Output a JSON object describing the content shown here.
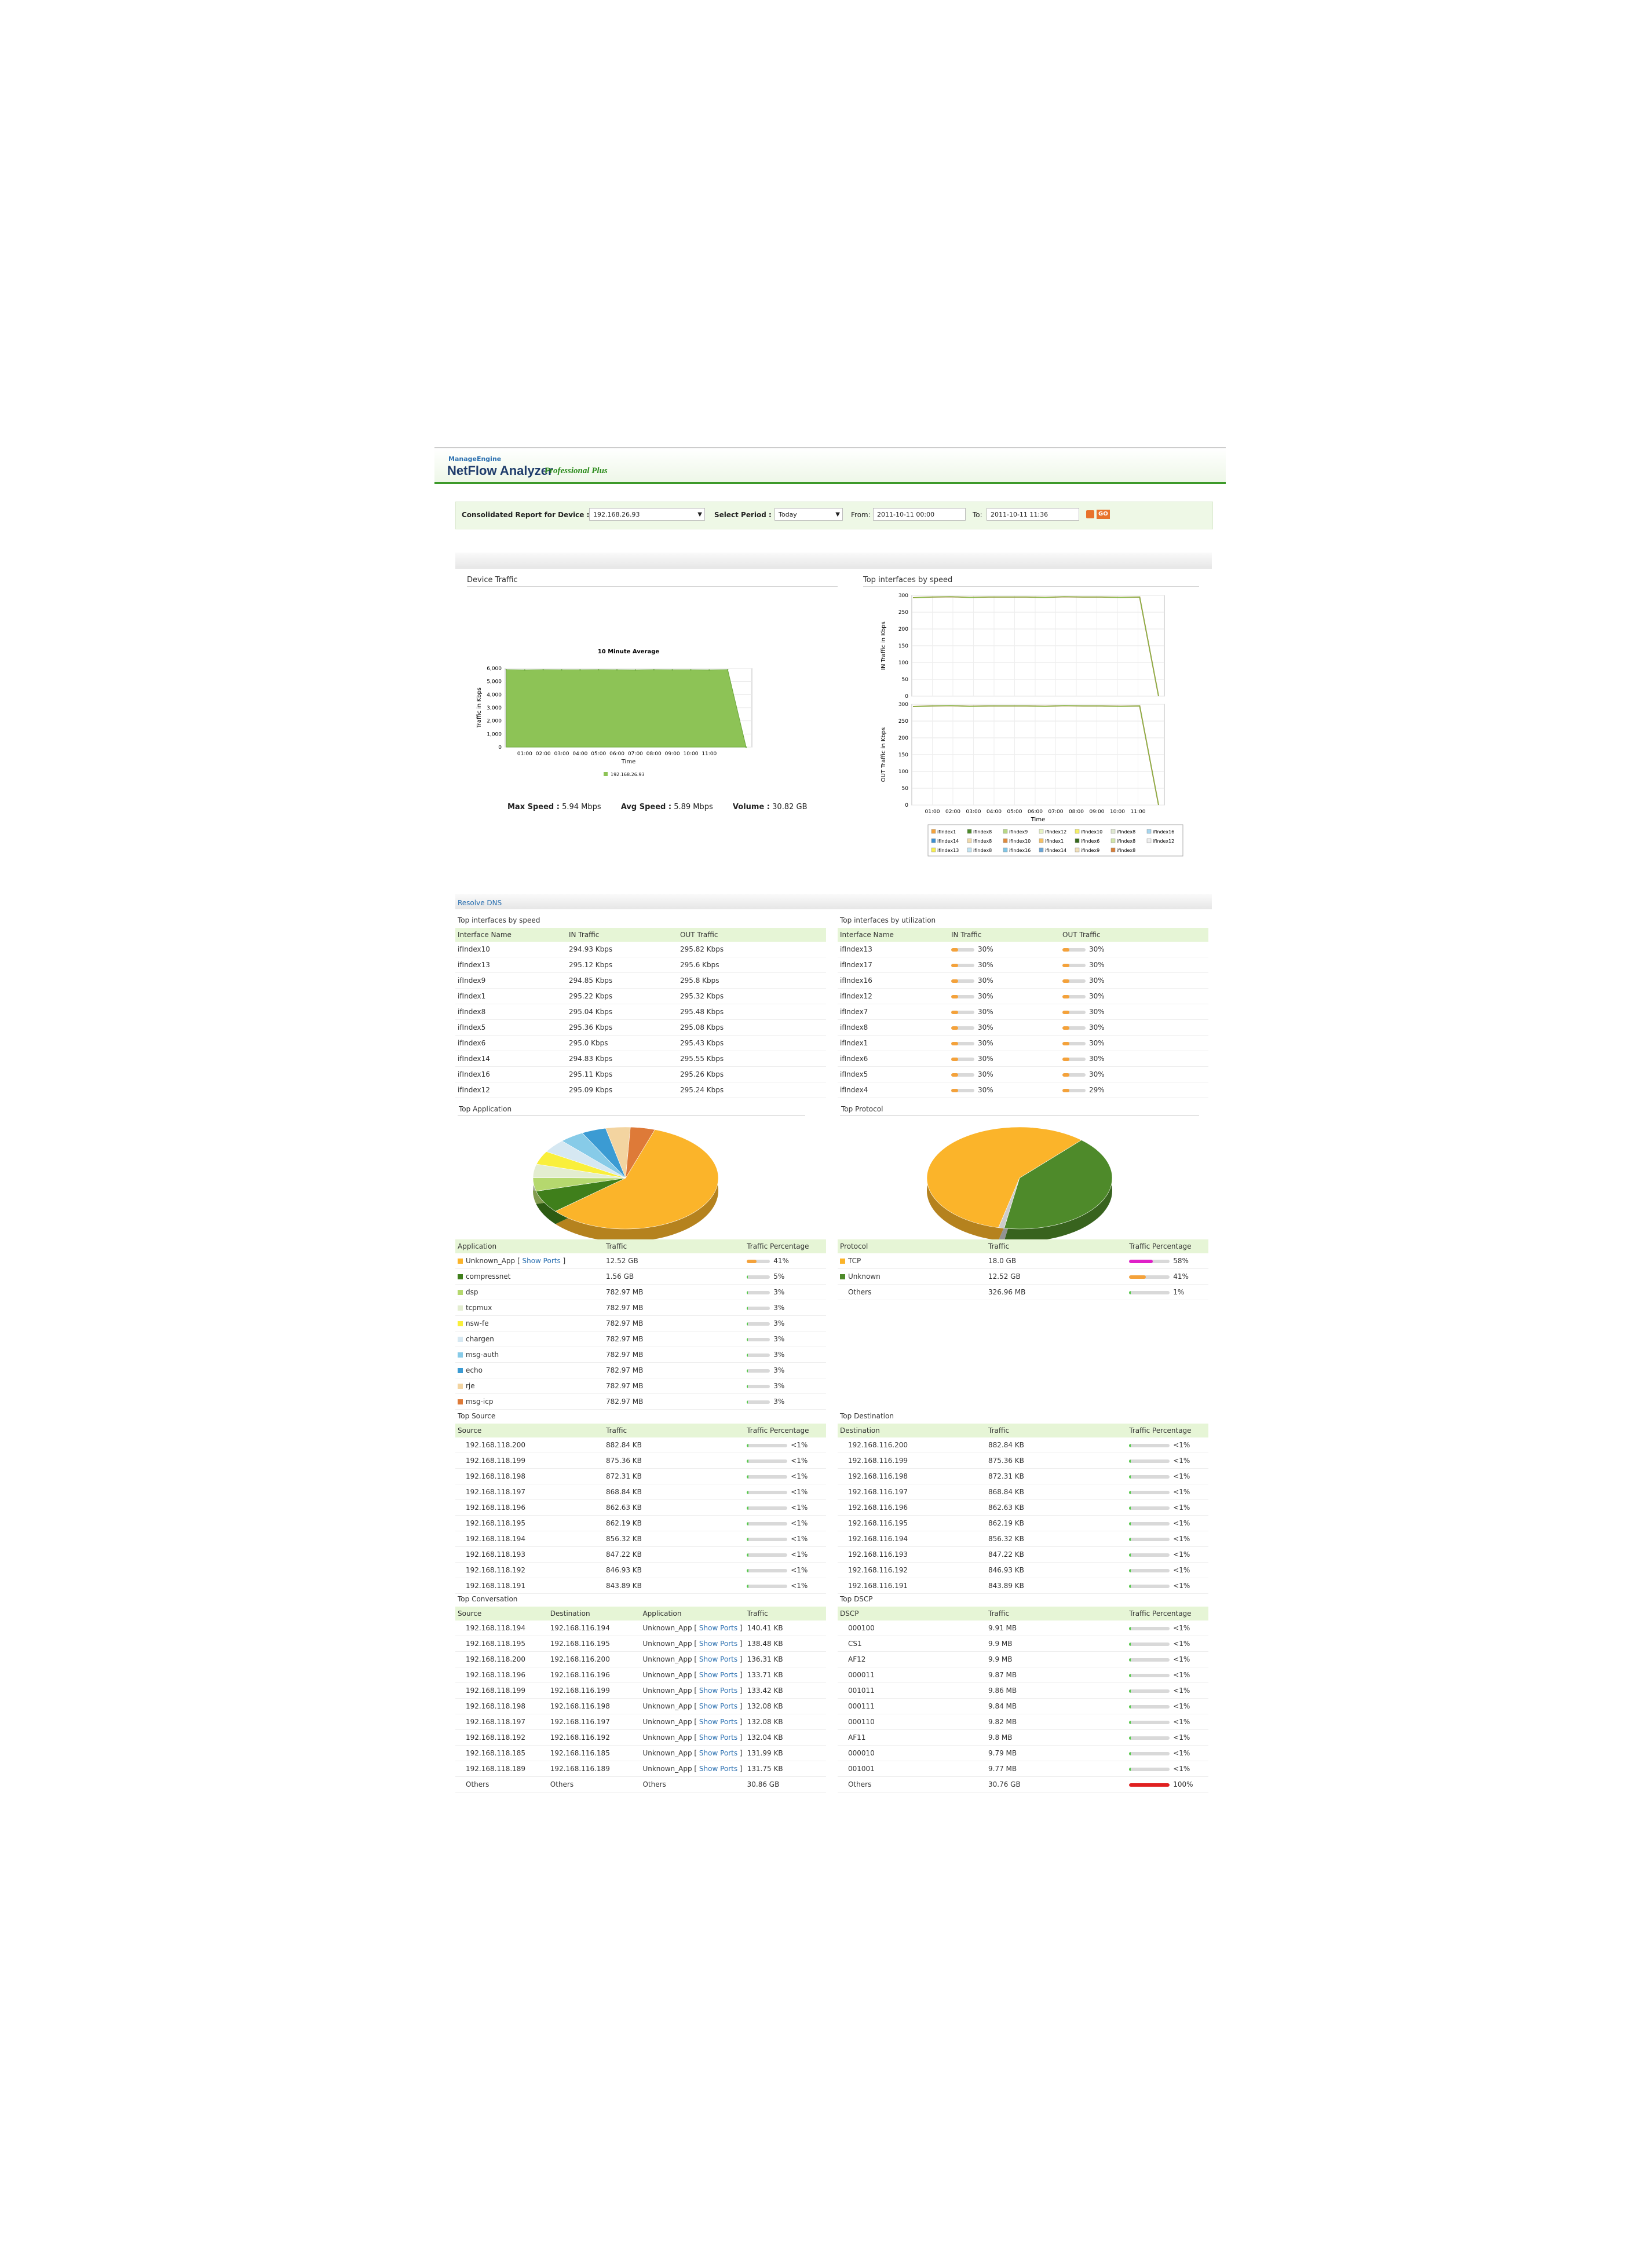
{
  "brand": {
    "vendor": "ManageEngine",
    "product": "NetFlow Analyzer",
    "edition": "Professional Plus"
  },
  "filter": {
    "device_label": "Consolidated Report for Device :",
    "device_value": "192.168.26.93",
    "period_label": "Select Period :",
    "period_value": "Today",
    "from_label": "From:",
    "from_value": "2011-10-11 00:00",
    "to_label": "To:",
    "to_value": "2011-10-11 11:36",
    "go_label": "GO"
  },
  "device_traffic": {
    "section_title": "Device Traffic",
    "chart_title": "10 Minute Average",
    "y_ticks": [
      "6,000",
      "5,000",
      "4,000",
      "3,000",
      "2,000",
      "1,000",
      "0"
    ],
    "x_ticks": [
      "01:00",
      "02:00",
      "03:00",
      "04:00",
      "05:00",
      "06:00",
      "07:00",
      "08:00",
      "09:00",
      "10:00",
      "11:00"
    ],
    "ylabel": "Traffic in Kbps",
    "xlabel": "Time",
    "legend": "192.168.26.93",
    "max_label": "Max Speed :",
    "max_value": "5.94 Mbps",
    "avg_label": "Avg Speed :",
    "avg_value": "5.89 Mbps",
    "vol_label": "Volume :",
    "vol_value": "30.82 GB"
  },
  "speed_charts": {
    "section_title": "Top interfaces by speed",
    "y_ticks": [
      "300",
      "250",
      "200",
      "150",
      "100",
      "50",
      "0"
    ],
    "in_ylabel": "IN Traffic in Kbps",
    "out_ylabel": "OUT Traffic in Kbps",
    "x_ticks": [
      "01:00",
      "02:00",
      "03:00",
      "04:00",
      "05:00",
      "06:00",
      "07:00",
      "08:00",
      "09:00",
      "10:00",
      "11:00"
    ],
    "xlabel": "Time",
    "legend": [
      {
        "name": "ifIndex1",
        "color": "#f4a23b"
      },
      {
        "name": "ifIndex8",
        "color": "#4c8a2a"
      },
      {
        "name": "ifIndex9",
        "color": "#b7d884"
      },
      {
        "name": "ifIndex12",
        "color": "#e7f2c4"
      },
      {
        "name": "ifIndex10",
        "color": "#f6f067"
      },
      {
        "name": "ifIndex8",
        "color": "#dfe8d0"
      },
      {
        "name": "ifIndex16",
        "color": "#a6d6ef"
      },
      {
        "name": "ifIndex14",
        "color": "#3d8fd1"
      },
      {
        "name": "ifIndex8",
        "color": "#f0d9a8"
      },
      {
        "name": "ifIndex10",
        "color": "#e08a3c"
      },
      {
        "name": "ifIndex1",
        "color": "#f5c065"
      },
      {
        "name": "ifIndex6",
        "color": "#386b1f"
      },
      {
        "name": "ifIndex8",
        "color": "#d1e5a8"
      },
      {
        "name": "ifIndex12",
        "color": "#eeeeee"
      },
      {
        "name": "ifIndex13",
        "color": "#f8ef4e"
      },
      {
        "name": "ifIndex8",
        "color": "#bfe3f2"
      },
      {
        "name": "ifIndex16",
        "color": "#80c7e8"
      },
      {
        "name": "ifIndex14",
        "color": "#6aa6d8"
      },
      {
        "name": "ifIndex9",
        "color": "#f2e0b8"
      },
      {
        "name": "ifIndex8",
        "color": "#d9803a"
      }
    ]
  },
  "chart_data": [
    {
      "type": "area",
      "title": "10 Minute Average",
      "xlabel": "Time",
      "ylabel": "Traffic in Kbps",
      "x": [
        "00:10",
        "01:00",
        "02:00",
        "03:00",
        "04:00",
        "05:00",
        "06:00",
        "07:00",
        "08:00",
        "09:00",
        "10:00",
        "11:00",
        "11:20",
        "11:30"
      ],
      "series": [
        {
          "name": "192.168.26.93",
          "values": [
            5900,
            5880,
            5900,
            5890,
            5890,
            5900,
            5890,
            5880,
            5900,
            5890,
            5890,
            5880,
            5900,
            0
          ]
        }
      ],
      "ylim": [
        0,
        6000
      ],
      "grid": true,
      "legend_position": "bottom"
    },
    {
      "type": "line",
      "title": "",
      "xlabel": "Time",
      "ylabel": "IN Traffic in Kbps",
      "x": [
        "00:10",
        "01:00",
        "02:00",
        "03:00",
        "04:00",
        "05:00",
        "06:00",
        "07:00",
        "08:00",
        "09:00",
        "10:00",
        "11:00",
        "11:20",
        "11:30"
      ],
      "series": [
        {
          "name": "ifIndex10",
          "values": [
            293,
            295,
            296,
            294,
            295,
            295,
            295,
            294,
            296,
            295,
            295,
            294,
            295,
            0
          ]
        }
      ],
      "ylim": [
        0,
        300
      ],
      "grid": true,
      "legend_position": "bottom"
    },
    {
      "type": "line",
      "title": "",
      "xlabel": "Time",
      "ylabel": "OUT Traffic in Kbps",
      "x": [
        "00:10",
        "01:00",
        "02:00",
        "03:00",
        "04:00",
        "05:00",
        "06:00",
        "07:00",
        "08:00",
        "09:00",
        "10:00",
        "11:00",
        "11:20",
        "11:30"
      ],
      "series": [
        {
          "name": "ifIndex10",
          "values": [
            293,
            295,
            296,
            294,
            295,
            295,
            295,
            294,
            296,
            295,
            295,
            294,
            295,
            0
          ]
        }
      ],
      "ylim": [
        0,
        300
      ],
      "grid": true,
      "legend_position": "bottom"
    },
    {
      "type": "pie",
      "title": "Top Application",
      "categories": [
        "Unknown_App",
        "compressnet",
        "dsp",
        "tcpmux",
        "nsw-fe",
        "chargen",
        "msg-auth",
        "echo",
        "rje",
        "msg-icp"
      ],
      "values": [
        41,
        5,
        3,
        3,
        3,
        3,
        3,
        3,
        3,
        3
      ],
      "colors": [
        "#fbb42a",
        "#3f7f1b",
        "#b5d86e",
        "#e3edd0",
        "#f9ef3b",
        "#d6e8f2",
        "#87cbe8",
        "#3b9bd3",
        "#f3d4a0",
        "#de7a38"
      ]
    },
    {
      "type": "pie",
      "title": "Top Protocol",
      "categories": [
        "TCP",
        "Unknown",
        "Others"
      ],
      "values": [
        58,
        41,
        1
      ],
      "colors": [
        "#fbb42a",
        "#4e8a2a",
        "#cccccc"
      ]
    }
  ],
  "resolve_dns": "Resolve DNS",
  "speed_table": {
    "title": "Top interfaces by speed",
    "headers": [
      "Interface Name",
      "IN Traffic",
      "OUT Traffic"
    ],
    "rows": [
      [
        "ifIndex10",
        "294.93 Kbps",
        "295.82 Kbps"
      ],
      [
        "ifIndex13",
        "295.12 Kbps",
        "295.6 Kbps"
      ],
      [
        "ifIndex9",
        "294.85 Kbps",
        "295.8 Kbps"
      ],
      [
        "ifIndex1",
        "295.22 Kbps",
        "295.32 Kbps"
      ],
      [
        "ifIndex8",
        "295.04 Kbps",
        "295.48 Kbps"
      ],
      [
        "ifIndex5",
        "295.36 Kbps",
        "295.08 Kbps"
      ],
      [
        "ifIndex6",
        "295.0 Kbps",
        "295.43 Kbps"
      ],
      [
        "ifIndex14",
        "294.83 Kbps",
        "295.55 Kbps"
      ],
      [
        "ifIndex16",
        "295.11 Kbps",
        "295.26 Kbps"
      ],
      [
        "ifIndex12",
        "295.09 Kbps",
        "295.24 Kbps"
      ]
    ]
  },
  "util_table": {
    "title": "Top interfaces by utilization",
    "headers": [
      "Interface Name",
      "IN Traffic",
      "OUT Traffic"
    ],
    "rows": [
      {
        "name": "ifIndex13",
        "in": "30%",
        "in_level": 30,
        "out": "30%",
        "out_level": 30
      },
      {
        "name": "ifIndex17",
        "in": "30%",
        "in_level": 30,
        "out": "30%",
        "out_level": 30
      },
      {
        "name": "ifIndex16",
        "in": "30%",
        "in_level": 30,
        "out": "30%",
        "out_level": 30
      },
      {
        "name": "ifIndex12",
        "in": "30%",
        "in_level": 30,
        "out": "30%",
        "out_level": 30
      },
      {
        "name": "ifIndex7",
        "in": "30%",
        "in_level": 30,
        "out": "30%",
        "out_level": 30
      },
      {
        "name": "ifIndex8",
        "in": "30%",
        "in_level": 30,
        "out": "30%",
        "out_level": 30
      },
      {
        "name": "ifIndex1",
        "in": "30%",
        "in_level": 30,
        "out": "30%",
        "out_level": 30
      },
      {
        "name": "ifIndex6",
        "in": "30%",
        "in_level": 30,
        "out": "30%",
        "out_level": 30
      },
      {
        "name": "ifIndex5",
        "in": "30%",
        "in_level": 30,
        "out": "30%",
        "out_level": 30
      },
      {
        "name": "ifIndex4",
        "in": "30%",
        "in_level": 30,
        "out": "29%",
        "out_level": 29
      }
    ]
  },
  "app_section_title": "Top Application",
  "protocol_section_title": "Top Protocol",
  "app_table": {
    "headers": [
      "Application",
      "Traffic",
      "Traffic Percentage"
    ],
    "show_ports": "Show Ports",
    "rows": [
      {
        "name": "Unknown_App",
        "color": "#fbb42a",
        "traffic": "12.52 GB",
        "pct": "41%",
        "level": 41,
        "bar": "#f4a23b",
        "ports": true
      },
      {
        "name": "compressnet",
        "color": "#3f7f1b",
        "traffic": "1.56 GB",
        "pct": "5%",
        "level": 5,
        "bar": "#55c94a"
      },
      {
        "name": "dsp",
        "color": "#b5d86e",
        "traffic": "782.97 MB",
        "pct": "3%",
        "level": 3,
        "bar": "#55c94a"
      },
      {
        "name": "tcpmux",
        "color": "#e3edd0",
        "traffic": "782.97 MB",
        "pct": "3%",
        "level": 3,
        "bar": "#55c94a"
      },
      {
        "name": "nsw-fe",
        "color": "#f9ef3b",
        "traffic": "782.97 MB",
        "pct": "3%",
        "level": 3,
        "bar": "#55c94a"
      },
      {
        "name": "chargen",
        "color": "#d6e8f2",
        "traffic": "782.97 MB",
        "pct": "3%",
        "level": 3,
        "bar": "#55c94a"
      },
      {
        "name": "msg-auth",
        "color": "#87cbe8",
        "traffic": "782.97 MB",
        "pct": "3%",
        "level": 3,
        "bar": "#55c94a"
      },
      {
        "name": "echo",
        "color": "#3b9bd3",
        "traffic": "782.97 MB",
        "pct": "3%",
        "level": 3,
        "bar": "#55c94a"
      },
      {
        "name": "rje",
        "color": "#f3d4a0",
        "traffic": "782.97 MB",
        "pct": "3%",
        "level": 3,
        "bar": "#55c94a"
      },
      {
        "name": "msg-icp",
        "color": "#de7a38",
        "traffic": "782.97 MB",
        "pct": "3%",
        "level": 3,
        "bar": "#55c94a"
      }
    ]
  },
  "proto_table": {
    "headers": [
      "Protocol",
      "Traffic",
      "Traffic Percentage"
    ],
    "rows": [
      {
        "name": "TCP",
        "color": "#fbb42a",
        "traffic": "18.0 GB",
        "pct": "58%",
        "level": 58,
        "bar": "#e020c8"
      },
      {
        "name": "Unknown",
        "color": "#4e8a2a",
        "traffic": "12.52 GB",
        "pct": "41%",
        "level": 41,
        "bar": "#f4a23b"
      },
      {
        "name": "Others",
        "color": "",
        "traffic": "326.96 MB",
        "pct": "1%",
        "level": 1,
        "bar": "#55c94a"
      }
    ]
  },
  "source_table": {
    "title": "Top Source",
    "headers": [
      "Source",
      "Traffic",
      "Traffic Percentage"
    ],
    "rows": [
      [
        "192.168.118.200",
        "882.84 KB",
        "<1%"
      ],
      [
        "192.168.118.199",
        "875.36 KB",
        "<1%"
      ],
      [
        "192.168.118.198",
        "872.31 KB",
        "<1%"
      ],
      [
        "192.168.118.197",
        "868.84 KB",
        "<1%"
      ],
      [
        "192.168.118.196",
        "862.63 KB",
        "<1%"
      ],
      [
        "192.168.118.195",
        "862.19 KB",
        "<1%"
      ],
      [
        "192.168.118.194",
        "856.32 KB",
        "<1%"
      ],
      [
        "192.168.118.193",
        "847.22 KB",
        "<1%"
      ],
      [
        "192.168.118.192",
        "846.93 KB",
        "<1%"
      ],
      [
        "192.168.118.191",
        "843.89 KB",
        "<1%"
      ]
    ]
  },
  "dest_table": {
    "title": "Top Destination",
    "headers": [
      "Destination",
      "Traffic",
      "Traffic Percentage"
    ],
    "rows": [
      [
        "192.168.116.200",
        "882.84 KB",
        "<1%"
      ],
      [
        "192.168.116.199",
        "875.36 KB",
        "<1%"
      ],
      [
        "192.168.116.198",
        "872.31 KB",
        "<1%"
      ],
      [
        "192.168.116.197",
        "868.84 KB",
        "<1%"
      ],
      [
        "192.168.116.196",
        "862.63 KB",
        "<1%"
      ],
      [
        "192.168.116.195",
        "862.19 KB",
        "<1%"
      ],
      [
        "192.168.116.194",
        "856.32 KB",
        "<1%"
      ],
      [
        "192.168.116.193",
        "847.22 KB",
        "<1%"
      ],
      [
        "192.168.116.192",
        "846.93 KB",
        "<1%"
      ],
      [
        "192.168.116.191",
        "843.89 KB",
        "<1%"
      ]
    ]
  },
  "conv_table": {
    "title": "Top Conversation",
    "headers": [
      "Source",
      "Destination",
      "Application",
      "Traffic"
    ],
    "show_ports": "Show Ports",
    "rows": [
      [
        "192.168.118.194",
        "192.168.116.194",
        "Unknown_App",
        "140.41 KB"
      ],
      [
        "192.168.118.195",
        "192.168.116.195",
        "Unknown_App",
        "138.48 KB"
      ],
      [
        "192.168.118.200",
        "192.168.116.200",
        "Unknown_App",
        "136.31 KB"
      ],
      [
        "192.168.118.196",
        "192.168.116.196",
        "Unknown_App",
        "133.71 KB"
      ],
      [
        "192.168.118.199",
        "192.168.116.199",
        "Unknown_App",
        "133.42 KB"
      ],
      [
        "192.168.118.198",
        "192.168.116.198",
        "Unknown_App",
        "132.08 KB"
      ],
      [
        "192.168.118.197",
        "192.168.116.197",
        "Unknown_App",
        "132.08 KB"
      ],
      [
        "192.168.118.192",
        "192.168.116.192",
        "Unknown_App",
        "132.04 KB"
      ],
      [
        "192.168.118.185",
        "192.168.116.185",
        "Unknown_App",
        "131.99 KB"
      ],
      [
        "192.168.118.189",
        "192.168.116.189",
        "Unknown_App",
        "131.75 KB"
      ],
      [
        "Others",
        "Others",
        "Others",
        "30.86 GB"
      ]
    ]
  },
  "dscp_table": {
    "title": "Top DSCP",
    "headers": [
      "DSCP",
      "Traffic",
      "Traffic Percentage"
    ],
    "rows": [
      {
        "name": "000100",
        "traffic": "9.91 MB",
        "pct": "<1%",
        "level": 1,
        "bar": "#55c94a"
      },
      {
        "name": "CS1",
        "traffic": "9.9 MB",
        "pct": "<1%",
        "level": 1,
        "bar": "#55c94a"
      },
      {
        "name": "AF12",
        "traffic": "9.9 MB",
        "pct": "<1%",
        "level": 1,
        "bar": "#55c94a"
      },
      {
        "name": "000011",
        "traffic": "9.87 MB",
        "pct": "<1%",
        "level": 1,
        "bar": "#55c94a"
      },
      {
        "name": "001011",
        "traffic": "9.86 MB",
        "pct": "<1%",
        "level": 1,
        "bar": "#55c94a"
      },
      {
        "name": "000111",
        "traffic": "9.84 MB",
        "pct": "<1%",
        "level": 1,
        "bar": "#55c94a"
      },
      {
        "name": "000110",
        "traffic": "9.82 MB",
        "pct": "<1%",
        "level": 1,
        "bar": "#55c94a"
      },
      {
        "name": "AF11",
        "traffic": "9.8 MB",
        "pct": "<1%",
        "level": 1,
        "bar": "#55c94a"
      },
      {
        "name": "000010",
        "traffic": "9.79 MB",
        "pct": "<1%",
        "level": 1,
        "bar": "#55c94a"
      },
      {
        "name": "001001",
        "traffic": "9.77 MB",
        "pct": "<1%",
        "level": 1,
        "bar": "#55c94a"
      },
      {
        "name": "Others",
        "traffic": "30.76 GB",
        "pct": "100%",
        "level": 100,
        "bar": "#e02020"
      }
    ]
  }
}
